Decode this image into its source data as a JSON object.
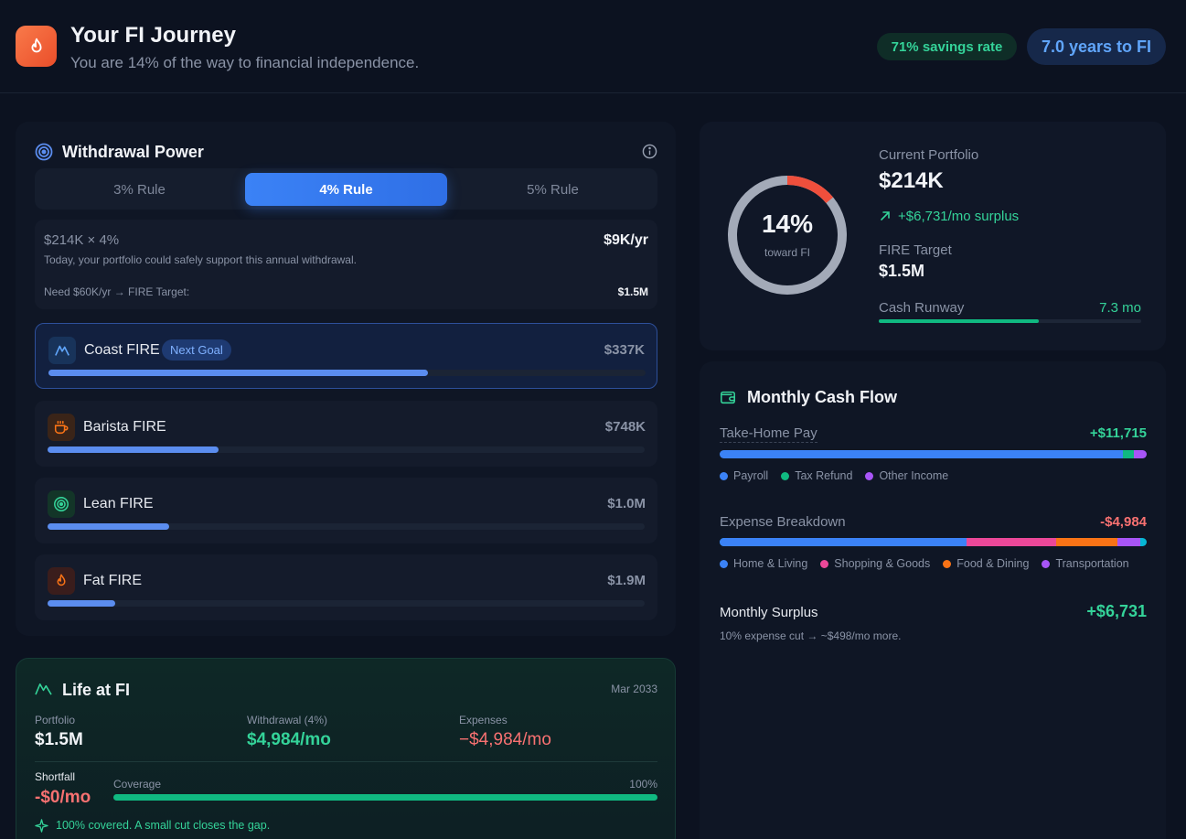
{
  "header": {
    "title": "Your FI Journey",
    "subtitle": "You are 14% of the way to financial independence.",
    "savings_rate": "71% savings rate",
    "years_to_fi": "7.0 years to FI"
  },
  "withdrawal": {
    "title": "Withdrawal Power",
    "tabs": [
      {
        "label": "3% Rule"
      },
      {
        "label": "4% Rule"
      },
      {
        "label": "5% Rule"
      }
    ],
    "calc_formula": "$214K × 4%",
    "calc_value": "$9K/yr",
    "calc_desc": "Today, your portfolio could safely support this annual withdrawal.",
    "need_label": "Need $60K/yr → FIRE Target:",
    "need_value": "$1.5M"
  },
  "fire_levels": [
    {
      "name": "Coast FIRE",
      "value": "$337K",
      "badge": "Next Goal",
      "progress": 0.635
    },
    {
      "name": "Barista FIRE",
      "value": "$748K",
      "progress": 0.287
    },
    {
      "name": "Lean FIRE",
      "value": "$1.0M",
      "progress": 0.204
    },
    {
      "name": "Fat FIRE",
      "value": "$1.9M",
      "progress": 0.113
    }
  ],
  "portfolio": {
    "ring_percent": "14%",
    "ring_label": "toward FI",
    "ring_fraction": 0.14,
    "current_label": "Current Portfolio",
    "current_value": "$214K",
    "surplus": "+$6,731/mo surplus",
    "target_label": "FIRE Target",
    "target_value": "$1.5M",
    "runway_label": "Cash Runway",
    "runway_value": "7.3 mo",
    "runway_fraction": 0.61
  },
  "cashflow": {
    "title": "Monthly Cash Flow",
    "income_label": "Take-Home Pay",
    "income_value": "+$11,715",
    "income_legend": [
      {
        "label": "Payroll",
        "color": "#3b82f6",
        "share": 0.945
      },
      {
        "label": "Tax Refund",
        "color": "#10b981",
        "share": 0.025
      },
      {
        "label": "Other Income",
        "color": "#a855f7",
        "share": 0.03
      }
    ],
    "expense_label": "Expense Breakdown",
    "expense_value": "-$4,984",
    "expense_legend": [
      {
        "label": "Home & Living",
        "color": "#3b82f6",
        "share": 0.578
      },
      {
        "label": "Shopping & Goods",
        "color": "#ec4899",
        "share": 0.21
      },
      {
        "label": "Food & Dining",
        "color": "#f97316",
        "share": 0.143
      },
      {
        "label": "Transportation",
        "color": "#a855f7",
        "share": 0.055
      }
    ],
    "surplus_label": "Monthly Surplus",
    "surplus_value": "+$6,731",
    "surplus_note": "10% expense cut → ~$498/mo more."
  },
  "life": {
    "title": "Life at FI",
    "date": "Mar 2033",
    "portfolio_label": "Portfolio",
    "portfolio_value": "$1.5M",
    "withdrawal_label": "Withdrawal (4%)",
    "withdrawal_value": "$4,984/mo",
    "expenses_label": "Expenses",
    "expenses_value": "−$4,984/mo",
    "shortfall_label": "Shortfall",
    "shortfall_value": "-$0/mo",
    "coverage_label": "Coverage",
    "coverage_value": "100%",
    "coverage_fraction": 1.0,
    "note": "100% covered. A small cut closes the gap."
  }
}
